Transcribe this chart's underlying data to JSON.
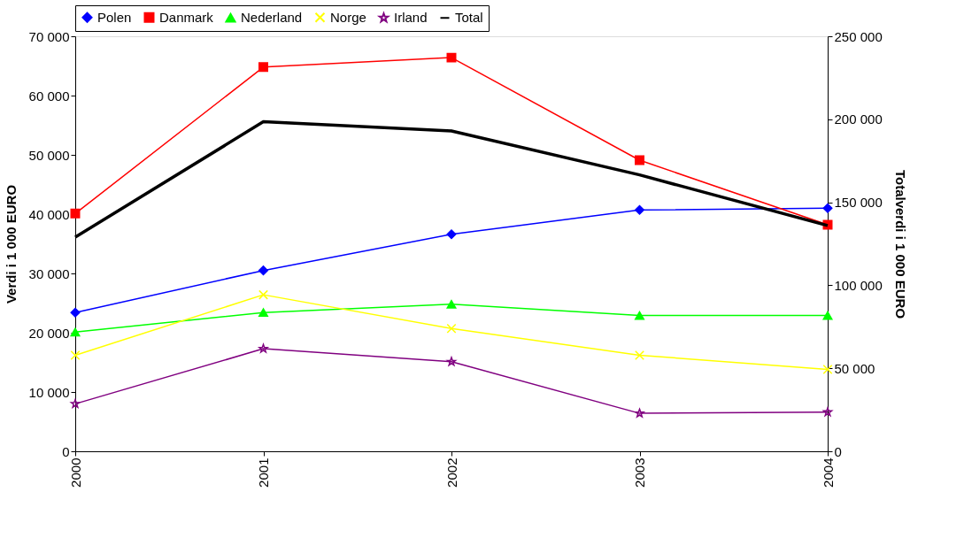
{
  "chart_data": {
    "type": "line",
    "ylabel": "Verdi i 1 000 EURO",
    "y2label": "Totalverdi i 1 000 EURO",
    "categories": [
      "2000",
      "2001",
      "2002",
      "2003",
      "2004"
    ],
    "series": [
      {
        "name": "Polen",
        "color": "#0000ff",
        "marker": "diamond",
        "values": [
          23400,
          30500,
          36600,
          40700,
          41000
        ]
      },
      {
        "name": "Danmark",
        "color": "#ff0000",
        "marker": "square",
        "values": [
          40100,
          64800,
          66400,
          49100,
          38200
        ]
      },
      {
        "name": "Nederland",
        "color": "#00ff00",
        "marker": "triangle",
        "values": [
          20100,
          23400,
          24800,
          22900,
          22900
        ]
      },
      {
        "name": "Norge",
        "color": "#ffff00",
        "marker": "cross",
        "values": [
          16200,
          26400,
          20700,
          16200,
          13800
        ]
      },
      {
        "name": "Irland",
        "color": "#800080",
        "marker": "star",
        "values": [
          8000,
          17300,
          15100,
          6400,
          6600
        ]
      },
      {
        "name": "Total",
        "color": "#000000",
        "marker": "none",
        "axis": "y2",
        "values": [
          129000,
          198500,
          193000,
          166500,
          136000
        ]
      }
    ],
    "ylim": [
      0,
      70000
    ],
    "yticks": [
      {
        "value": 0,
        "label": "0"
      },
      {
        "value": 10000,
        "label": "10 000"
      },
      {
        "value": 20000,
        "label": "20 000"
      },
      {
        "value": 30000,
        "label": "30 000"
      },
      {
        "value": 40000,
        "label": "40 000"
      },
      {
        "value": 50000,
        "label": "50 000"
      },
      {
        "value": 60000,
        "label": "60 000"
      },
      {
        "value": 70000,
        "label": "70 000"
      }
    ],
    "y2lim": [
      0,
      250000
    ],
    "y2ticks": [
      {
        "value": 0,
        "label": "0"
      },
      {
        "value": 50000,
        "label": "50 000"
      },
      {
        "value": 100000,
        "label": "100 000"
      },
      {
        "value": 150000,
        "label": "150 000"
      },
      {
        "value": 200000,
        "label": "200 000"
      },
      {
        "value": 250000,
        "label": "250 000"
      }
    ],
    "legend": "top",
    "grid": false
  }
}
